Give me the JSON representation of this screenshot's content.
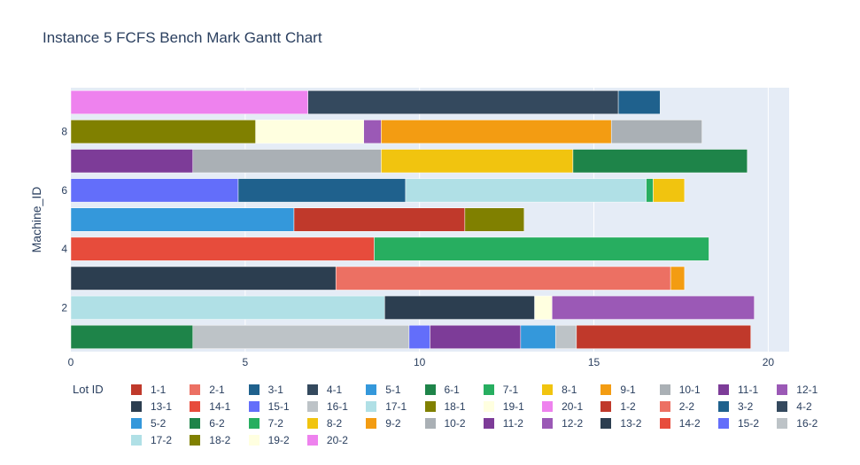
{
  "chart_data": {
    "type": "gantt",
    "title": "Instance 5 FCFS Bench Mark Gantt Chart",
    "ylabel": "Machine_ID",
    "xlabel": "",
    "xlim": [
      0,
      20.6
    ],
    "ylim": [
      0.5,
      9.5
    ],
    "xticks": [
      0,
      5,
      10,
      15,
      20
    ],
    "yticks": [
      2,
      4,
      6,
      8
    ],
    "legend_title": "Lot ID",
    "lots": [
      {
        "id": "1-1",
        "color": "#C0392B"
      },
      {
        "id": "2-1",
        "color": "#EC7063"
      },
      {
        "id": "3-1",
        "color": "#1F618D"
      },
      {
        "id": "4-1",
        "color": "#34495E"
      },
      {
        "id": "5-1",
        "color": "#3498DB"
      },
      {
        "id": "6-1",
        "color": "#1E8449"
      },
      {
        "id": "7-1",
        "color": "#27AE60"
      },
      {
        "id": "8-1",
        "color": "#F1C40F"
      },
      {
        "id": "9-1",
        "color": "#F39C12"
      },
      {
        "id": "10-1",
        "color": "#AAB0B5"
      },
      {
        "id": "11-1",
        "color": "#7D3C98"
      },
      {
        "id": "12-1",
        "color": "#9B59B6"
      },
      {
        "id": "13-1",
        "color": "#2C3E50"
      },
      {
        "id": "14-1",
        "color": "#E74C3C"
      },
      {
        "id": "15-1",
        "color": "#636EFA"
      },
      {
        "id": "16-1",
        "color": "#BDC3C7"
      },
      {
        "id": "17-1",
        "color": "#B0E0E6"
      },
      {
        "id": "18-1",
        "color": "#808000"
      },
      {
        "id": "19-1",
        "color": "#FFFFE0"
      },
      {
        "id": "20-1",
        "color": "#EE82EE"
      },
      {
        "id": "1-2",
        "color": "#C0392B"
      },
      {
        "id": "2-2",
        "color": "#EC7063"
      },
      {
        "id": "3-2",
        "color": "#1F618D"
      },
      {
        "id": "4-2",
        "color": "#34495E"
      },
      {
        "id": "5-2",
        "color": "#3498DB"
      },
      {
        "id": "6-2",
        "color": "#1E8449"
      },
      {
        "id": "7-2",
        "color": "#27AE60"
      },
      {
        "id": "8-2",
        "color": "#F1C40F"
      },
      {
        "id": "9-2",
        "color": "#F39C12"
      },
      {
        "id": "10-2",
        "color": "#AAB0B5"
      },
      {
        "id": "11-2",
        "color": "#7D3C98"
      },
      {
        "id": "12-2",
        "color": "#9B59B6"
      },
      {
        "id": "13-2",
        "color": "#2C3E50"
      },
      {
        "id": "14-2",
        "color": "#E74C3C"
      },
      {
        "id": "15-2",
        "color": "#636EFA"
      },
      {
        "id": "16-2",
        "color": "#BDC3C7"
      },
      {
        "id": "17-2",
        "color": "#B0E0E6"
      },
      {
        "id": "18-2",
        "color": "#808000"
      },
      {
        "id": "19-2",
        "color": "#FFFFE0"
      },
      {
        "id": "20-2",
        "color": "#EE82EE"
      }
    ],
    "tasks": [
      {
        "machine": 1,
        "lot": "6-1",
        "start": 0.0,
        "end": 3.5
      },
      {
        "machine": 1,
        "lot": "16-1",
        "start": 3.5,
        "end": 9.7
      },
      {
        "machine": 1,
        "lot": "15-2",
        "start": 9.7,
        "end": 10.3
      },
      {
        "machine": 1,
        "lot": "11-2",
        "start": 10.3,
        "end": 12.9
      },
      {
        "machine": 1,
        "lot": "5-2",
        "start": 12.9,
        "end": 13.9
      },
      {
        "machine": 1,
        "lot": "16-2",
        "start": 13.9,
        "end": 14.5
      },
      {
        "machine": 1,
        "lot": "1-2",
        "start": 14.5,
        "end": 19.5
      },
      {
        "machine": 2,
        "lot": "17-1",
        "start": 0.0,
        "end": 9.0
      },
      {
        "machine": 2,
        "lot": "13-2",
        "start": 9.0,
        "end": 13.3
      },
      {
        "machine": 2,
        "lot": "19-2",
        "start": 13.3,
        "end": 13.8
      },
      {
        "machine": 2,
        "lot": "12-2",
        "start": 13.8,
        "end": 19.6
      },
      {
        "machine": 3,
        "lot": "13-1",
        "start": 0.0,
        "end": 7.6
      },
      {
        "machine": 3,
        "lot": "2-2",
        "start": 7.6,
        "end": 17.2
      },
      {
        "machine": 3,
        "lot": "9-2",
        "start": 17.2,
        "end": 17.6
      },
      {
        "machine": 4,
        "lot": "14-1",
        "start": 0.0,
        "end": 8.7
      },
      {
        "machine": 4,
        "lot": "7-2",
        "start": 8.7,
        "end": 18.3
      },
      {
        "machine": 5,
        "lot": "5-1",
        "start": 0.0,
        "end": 6.4
      },
      {
        "machine": 5,
        "lot": "1-1",
        "start": 6.4,
        "end": 11.3
      },
      {
        "machine": 5,
        "lot": "18-2",
        "start": 11.3,
        "end": 13.0
      },
      {
        "machine": 6,
        "lot": "15-1",
        "start": 0.0,
        "end": 4.8
      },
      {
        "machine": 6,
        "lot": "3-2",
        "start": 4.8,
        "end": 9.6
      },
      {
        "machine": 6,
        "lot": "17-2",
        "start": 9.6,
        "end": 16.5
      },
      {
        "machine": 6,
        "lot": "7-1",
        "start": 16.5,
        "end": 16.7
      },
      {
        "machine": 6,
        "lot": "8-2",
        "start": 16.7,
        "end": 17.6
      },
      {
        "machine": 7,
        "lot": "11-1",
        "start": 0.0,
        "end": 3.5
      },
      {
        "machine": 7,
        "lot": "10-2",
        "start": 3.5,
        "end": 8.9
      },
      {
        "machine": 7,
        "lot": "8-1",
        "start": 8.9,
        "end": 14.4
      },
      {
        "machine": 7,
        "lot": "6-2",
        "start": 14.4,
        "end": 19.4
      },
      {
        "machine": 8,
        "lot": "18-1",
        "start": 0.0,
        "end": 5.3
      },
      {
        "machine": 8,
        "lot": "19-1",
        "start": 5.3,
        "end": 8.4
      },
      {
        "machine": 8,
        "lot": "12-1",
        "start": 8.4,
        "end": 8.9
      },
      {
        "machine": 8,
        "lot": "9-1",
        "start": 8.9,
        "end": 15.5
      },
      {
        "machine": 8,
        "lot": "10-1",
        "start": 15.5,
        "end": 18.1
      },
      {
        "machine": 9,
        "lot": "20-2",
        "start": 0.0,
        "end": 6.8
      },
      {
        "machine": 9,
        "lot": "4-2",
        "start": 6.8,
        "end": 15.7
      },
      {
        "machine": 9,
        "lot": "3-1",
        "start": 15.7,
        "end": 16.9
      }
    ]
  }
}
